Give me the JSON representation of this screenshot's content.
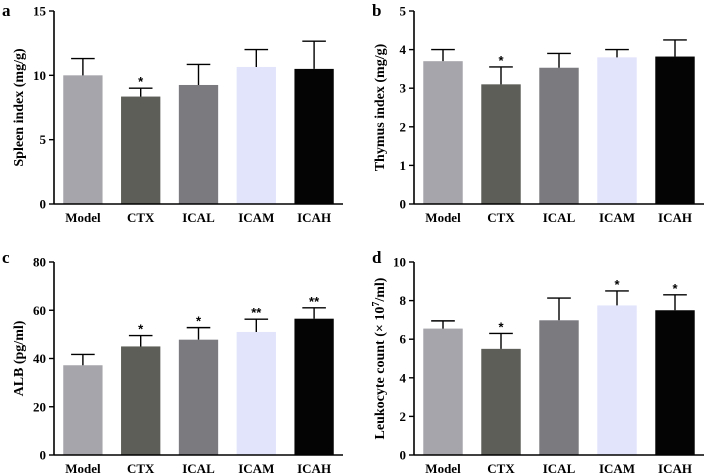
{
  "colors": [
    "#a5a5ab",
    "#5c5e57",
    "#7b7b7f",
    "#e2e4fc",
    "#040404"
  ],
  "chart_data": [
    {
      "type": "bar",
      "panel_label": "a",
      "categories": [
        "Model",
        "CTX",
        "ICAL",
        "ICAM",
        "ICAH"
      ],
      "values": [
        10.0,
        8.35,
        9.25,
        10.65,
        10.5
      ],
      "errors": [
        1.3,
        0.65,
        1.6,
        1.35,
        2.15
      ],
      "significance": [
        "",
        "*",
        "",
        "",
        ""
      ],
      "ylabel": "Spleen index (mg/g)",
      "ylim": [
        0,
        15
      ],
      "yticks": [
        "0",
        "5",
        "10",
        "15"
      ]
    },
    {
      "type": "bar",
      "panel_label": "b",
      "categories": [
        "Model",
        "CTX",
        "ICAL",
        "ICAM",
        "ICAH"
      ],
      "values": [
        3.7,
        3.1,
        3.53,
        3.8,
        3.82
      ],
      "errors": [
        0.3,
        0.45,
        0.37,
        0.2,
        0.43
      ],
      "significance": [
        "",
        "*",
        "",
        "",
        ""
      ],
      "ylabel": "Thymus index (mg/g)",
      "ylim": [
        0,
        5
      ],
      "yticks": [
        "0",
        "1",
        "2",
        "3",
        "4",
        "5"
      ]
    },
    {
      "type": "bar",
      "panel_label": "c",
      "categories": [
        "Model",
        "CTX",
        "ICAL",
        "ICAM",
        "ICAH"
      ],
      "values": [
        37.2,
        45.0,
        47.8,
        51.0,
        56.5
      ],
      "errors": [
        4.5,
        4.5,
        5.0,
        5.3,
        4.5
      ],
      "significance": [
        "",
        "*",
        "*",
        "**",
        "**"
      ],
      "ylabel": "ALB (pg/ml)",
      "ylim": [
        0,
        80
      ],
      "yticks": [
        "0",
        "20",
        "40",
        "60",
        "80"
      ]
    },
    {
      "type": "bar",
      "panel_label": "d",
      "categories": [
        "Model",
        "CTX",
        "ICAL",
        "ICAM",
        "ICAH"
      ],
      "values": [
        6.55,
        5.5,
        6.98,
        7.75,
        7.5
      ],
      "errors": [
        0.4,
        0.8,
        1.15,
        0.75,
        0.8
      ],
      "significance": [
        "",
        "*",
        "",
        "*",
        "*"
      ],
      "ylabel_main": "Leukocyte count (× 10",
      "ylabel_sup": "7",
      "ylabel_tail": "/ml)",
      "ylim": [
        0,
        10
      ],
      "yticks": [
        "0",
        "2",
        "4",
        "6",
        "8",
        "10"
      ]
    }
  ]
}
